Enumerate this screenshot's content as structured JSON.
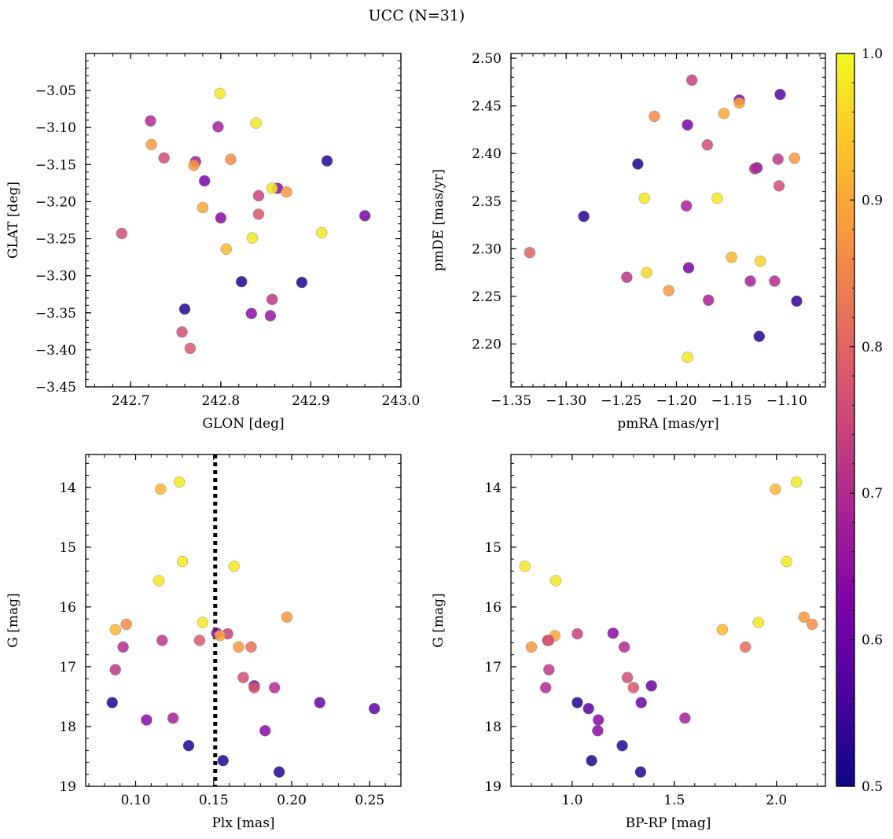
{
  "figure": {
    "title": "UCC (N=31)"
  },
  "colorbar": {
    "range": [
      0.5,
      1.0
    ],
    "ticks": [
      0.5,
      0.6,
      0.7,
      0.8,
      0.9,
      1.0
    ],
    "tick_labels": [
      "0.5",
      "0.6",
      "0.7",
      "0.8",
      "0.9",
      "1.0"
    ],
    "colormap": "plasma"
  },
  "chart_data": [
    {
      "type": "scatter",
      "xlabel": "GLON [deg]",
      "ylabel": "GLAT [deg]",
      "xlim": [
        242.65,
        243.0
      ],
      "ylim": [
        -3.45,
        -3.0
      ],
      "xticks": [
        242.7,
        242.8,
        242.9,
        243.0
      ],
      "xtick_labels": [
        "242.7",
        "242.8",
        "242.9",
        "243.0"
      ],
      "yticks": [
        -3.45,
        -3.4,
        -3.35,
        -3.3,
        -3.25,
        -3.2,
        -3.15,
        -3.1,
        -3.05
      ],
      "ytick_labels": [
        "−3.45",
        "−3.40",
        "−3.35",
        "−3.30",
        "−3.25",
        "−3.20",
        "−3.15",
        "−3.10",
        "−3.05"
      ],
      "points": [
        {
          "x": 242.799,
          "y": -3.054,
          "c": 0.98
        },
        {
          "x": 242.839,
          "y": -3.094,
          "c": 0.98
        },
        {
          "x": 242.722,
          "y": -3.091,
          "c": 0.7
        },
        {
          "x": 242.797,
          "y": -3.099,
          "c": 0.68
        },
        {
          "x": 242.723,
          "y": -3.123,
          "c": 0.88
        },
        {
          "x": 242.737,
          "y": -3.141,
          "c": 0.76
        },
        {
          "x": 242.772,
          "y": -3.146,
          "c": 0.68
        },
        {
          "x": 242.77,
          "y": -3.151,
          "c": 0.88
        },
        {
          "x": 242.811,
          "y": -3.143,
          "c": 0.86
        },
        {
          "x": 242.918,
          "y": -3.145,
          "c": 0.52
        },
        {
          "x": 242.782,
          "y": -3.172,
          "c": 0.62
        },
        {
          "x": 242.863,
          "y": -3.182,
          "c": 0.64
        },
        {
          "x": 242.857,
          "y": -3.182,
          "c": 0.98
        },
        {
          "x": 242.873,
          "y": -3.187,
          "c": 0.88
        },
        {
          "x": 242.842,
          "y": -3.192,
          "c": 0.74
        },
        {
          "x": 242.78,
          "y": -3.208,
          "c": 0.9
        },
        {
          "x": 242.842,
          "y": -3.217,
          "c": 0.78
        },
        {
          "x": 242.8,
          "y": -3.222,
          "c": 0.64
        },
        {
          "x": 242.96,
          "y": -3.219,
          "c": 0.62
        },
        {
          "x": 242.69,
          "y": -3.243,
          "c": 0.76
        },
        {
          "x": 242.912,
          "y": -3.242,
          "c": 0.98
        },
        {
          "x": 242.835,
          "y": -3.249,
          "c": 0.98
        },
        {
          "x": 242.806,
          "y": -3.264,
          "c": 0.92
        },
        {
          "x": 242.823,
          "y": -3.308,
          "c": 0.52
        },
        {
          "x": 242.89,
          "y": -3.309,
          "c": 0.52
        },
        {
          "x": 242.857,
          "y": -3.332,
          "c": 0.72
        },
        {
          "x": 242.76,
          "y": -3.345,
          "c": 0.52
        },
        {
          "x": 242.834,
          "y": -3.351,
          "c": 0.64
        },
        {
          "x": 242.855,
          "y": -3.354,
          "c": 0.66
        },
        {
          "x": 242.757,
          "y": -3.376,
          "c": 0.76
        },
        {
          "x": 242.766,
          "y": -3.398,
          "c": 0.78
        }
      ]
    },
    {
      "type": "scatter",
      "xlabel": "pmRA [mas/yr]",
      "ylabel": "pmDE [mas/yr]",
      "xlim": [
        -1.35,
        -1.065
      ],
      "ylim": [
        2.155,
        2.505
      ],
      "xticks": [
        -1.35,
        -1.3,
        -1.25,
        -1.2,
        -1.15,
        -1.1
      ],
      "xtick_labels": [
        "−1.35",
        "−1.30",
        "−1.25",
        "−1.20",
        "−1.15",
        "−1.10"
      ],
      "yticks": [
        2.2,
        2.25,
        2.3,
        2.35,
        2.4,
        2.45,
        2.5
      ],
      "ytick_labels": [
        "2.20",
        "2.25",
        "2.30",
        "2.35",
        "2.40",
        "2.45",
        "2.50"
      ],
      "points": [
        {
          "x": -1.186,
          "y": 2.477,
          "c": 0.74
        },
        {
          "x": -1.106,
          "y": 2.462,
          "c": 0.58
        },
        {
          "x": -1.143,
          "y": 2.456,
          "c": 0.62
        },
        {
          "x": -1.143,
          "y": 2.453,
          "c": 0.9
        },
        {
          "x": -1.157,
          "y": 2.442,
          "c": 0.9
        },
        {
          "x": -1.22,
          "y": 2.439,
          "c": 0.86
        },
        {
          "x": -1.19,
          "y": 2.43,
          "c": 0.62
        },
        {
          "x": -1.172,
          "y": 2.409,
          "c": 0.76
        },
        {
          "x": -1.093,
          "y": 2.395,
          "c": 0.88
        },
        {
          "x": -1.108,
          "y": 2.394,
          "c": 0.72
        },
        {
          "x": -1.235,
          "y": 2.389,
          "c": 0.52
        },
        {
          "x": -1.127,
          "y": 2.385,
          "c": 0.64
        },
        {
          "x": -1.129,
          "y": 2.384,
          "c": 0.7
        },
        {
          "x": -1.107,
          "y": 2.366,
          "c": 0.76
        },
        {
          "x": -1.229,
          "y": 2.353,
          "c": 0.98
        },
        {
          "x": -1.163,
          "y": 2.353,
          "c": 0.98
        },
        {
          "x": -1.191,
          "y": 2.345,
          "c": 0.68
        },
        {
          "x": -1.284,
          "y": 2.334,
          "c": 0.52
        },
        {
          "x": -1.333,
          "y": 2.296,
          "c": 0.8
        },
        {
          "x": -1.15,
          "y": 2.291,
          "c": 0.92
        },
        {
          "x": -1.124,
          "y": 2.287,
          "c": 0.96
        },
        {
          "x": -1.189,
          "y": 2.28,
          "c": 0.62
        },
        {
          "x": -1.227,
          "y": 2.275,
          "c": 0.96
        },
        {
          "x": -1.245,
          "y": 2.27,
          "c": 0.72
        },
        {
          "x": -1.133,
          "y": 2.266,
          "c": 0.68
        },
        {
          "x": -1.111,
          "y": 2.266,
          "c": 0.7
        },
        {
          "x": -1.207,
          "y": 2.256,
          "c": 0.88
        },
        {
          "x": -1.171,
          "y": 2.246,
          "c": 0.68
        },
        {
          "x": -1.091,
          "y": 2.245,
          "c": 0.54
        },
        {
          "x": -1.125,
          "y": 2.208,
          "c": 0.52
        },
        {
          "x": -1.19,
          "y": 2.186,
          "c": 0.98
        }
      ]
    },
    {
      "type": "scatter",
      "xlabel": "Plx [mas]",
      "ylabel": "G [mag]",
      "xlim": [
        0.068,
        0.27
      ],
      "ylim": [
        19.0,
        13.45
      ],
      "inverted_y": true,
      "vline": {
        "x": 0.151,
        "style": "dotted",
        "color": "#000000"
      },
      "xticks": [
        0.1,
        0.15,
        0.2,
        0.25
      ],
      "xtick_labels": [
        "0.10",
        "0.15",
        "0.20",
        "0.25"
      ],
      "yticks": [
        14,
        15,
        16,
        17,
        18,
        19
      ],
      "ytick_labels": [
        "14",
        "15",
        "16",
        "17",
        "18",
        "19"
      ],
      "points": [
        {
          "x": 0.128,
          "y": 13.91,
          "c": 0.98
        },
        {
          "x": 0.116,
          "y": 14.03,
          "c": 0.92
        },
        {
          "x": 0.13,
          "y": 15.24,
          "c": 0.98
        },
        {
          "x": 0.163,
          "y": 15.32,
          "c": 0.98
        },
        {
          "x": 0.115,
          "y": 15.56,
          "c": 0.98
        },
        {
          "x": 0.197,
          "y": 16.17,
          "c": 0.88
        },
        {
          "x": 0.143,
          "y": 16.26,
          "c": 0.98
        },
        {
          "x": 0.094,
          "y": 16.29,
          "c": 0.86
        },
        {
          "x": 0.087,
          "y": 16.38,
          "c": 0.92
        },
        {
          "x": 0.152,
          "y": 16.44,
          "c": 0.64
        },
        {
          "x": 0.159,
          "y": 16.45,
          "c": 0.74
        },
        {
          "x": 0.154,
          "y": 16.48,
          "c": 0.9
        },
        {
          "x": 0.117,
          "y": 16.56,
          "c": 0.72
        },
        {
          "x": 0.141,
          "y": 16.56,
          "c": 0.78
        },
        {
          "x": 0.166,
          "y": 16.67,
          "c": 0.88
        },
        {
          "x": 0.174,
          "y": 16.67,
          "c": 0.82
        },
        {
          "x": 0.092,
          "y": 16.67,
          "c": 0.7
        },
        {
          "x": 0.087,
          "y": 17.05,
          "c": 0.72
        },
        {
          "x": 0.169,
          "y": 17.18,
          "c": 0.76
        },
        {
          "x": 0.176,
          "y": 17.32,
          "c": 0.6
        },
        {
          "x": 0.189,
          "y": 17.35,
          "c": 0.7
        },
        {
          "x": 0.176,
          "y": 17.35,
          "c": 0.78
        },
        {
          "x": 0.085,
          "y": 17.6,
          "c": 0.52
        },
        {
          "x": 0.218,
          "y": 17.6,
          "c": 0.6
        },
        {
          "x": 0.253,
          "y": 17.7,
          "c": 0.58
        },
        {
          "x": 0.124,
          "y": 17.86,
          "c": 0.68
        },
        {
          "x": 0.107,
          "y": 17.89,
          "c": 0.64
        },
        {
          "x": 0.183,
          "y": 18.07,
          "c": 0.64
        },
        {
          "x": 0.134,
          "y": 18.32,
          "c": 0.52
        },
        {
          "x": 0.156,
          "y": 18.57,
          "c": 0.52
        },
        {
          "x": 0.192,
          "y": 18.76,
          "c": 0.52
        }
      ]
    },
    {
      "type": "scatter",
      "xlabel": "BP-RP [mag]",
      "ylabel": "G [mag]",
      "xlim": [
        0.7,
        2.24
      ],
      "ylim": [
        19.0,
        13.45
      ],
      "inverted_y": true,
      "xticks": [
        1.0,
        1.5,
        2.0
      ],
      "xtick_labels": [
        "1.0",
        "1.5",
        "2.0"
      ],
      "yticks": [
        14,
        15,
        16,
        17,
        18,
        19
      ],
      "ytick_labels": [
        "14",
        "15",
        "16",
        "17",
        "18",
        "19"
      ],
      "points": [
        {
          "x": 2.098,
          "y": 13.91,
          "c": 0.98
        },
        {
          "x": 1.995,
          "y": 14.03,
          "c": 0.92
        },
        {
          "x": 2.05,
          "y": 15.24,
          "c": 0.98
        },
        {
          "x": 0.768,
          "y": 15.32,
          "c": 0.98
        },
        {
          "x": 0.92,
          "y": 15.56,
          "c": 0.98
        },
        {
          "x": 2.135,
          "y": 16.17,
          "c": 0.88
        },
        {
          "x": 1.912,
          "y": 16.26,
          "c": 0.98
        },
        {
          "x": 2.175,
          "y": 16.29,
          "c": 0.86
        },
        {
          "x": 1.735,
          "y": 16.38,
          "c": 0.92
        },
        {
          "x": 1.2,
          "y": 16.44,
          "c": 0.64
        },
        {
          "x": 1.025,
          "y": 16.45,
          "c": 0.74
        },
        {
          "x": 0.915,
          "y": 16.48,
          "c": 0.9
        },
        {
          "x": 0.88,
          "y": 16.56,
          "c": 0.72
        },
        {
          "x": 0.885,
          "y": 16.56,
          "c": 0.78
        },
        {
          "x": 0.8,
          "y": 16.67,
          "c": 0.88
        },
        {
          "x": 1.848,
          "y": 16.67,
          "c": 0.82
        },
        {
          "x": 1.255,
          "y": 16.67,
          "c": 0.7
        },
        {
          "x": 0.886,
          "y": 17.05,
          "c": 0.72
        },
        {
          "x": 1.27,
          "y": 17.18,
          "c": 0.76
        },
        {
          "x": 1.388,
          "y": 17.32,
          "c": 0.6
        },
        {
          "x": 0.87,
          "y": 17.35,
          "c": 0.7
        },
        {
          "x": 1.3,
          "y": 17.35,
          "c": 0.78
        },
        {
          "x": 1.025,
          "y": 17.6,
          "c": 0.52
        },
        {
          "x": 1.338,
          "y": 17.6,
          "c": 0.6
        },
        {
          "x": 1.08,
          "y": 17.7,
          "c": 0.58
        },
        {
          "x": 1.552,
          "y": 17.86,
          "c": 0.68
        },
        {
          "x": 1.128,
          "y": 17.89,
          "c": 0.64
        },
        {
          "x": 1.125,
          "y": 18.07,
          "c": 0.64
        },
        {
          "x": 1.245,
          "y": 18.32,
          "c": 0.52
        },
        {
          "x": 1.095,
          "y": 18.57,
          "c": 0.52
        },
        {
          "x": 1.335,
          "y": 18.76,
          "c": 0.52
        }
      ]
    }
  ]
}
